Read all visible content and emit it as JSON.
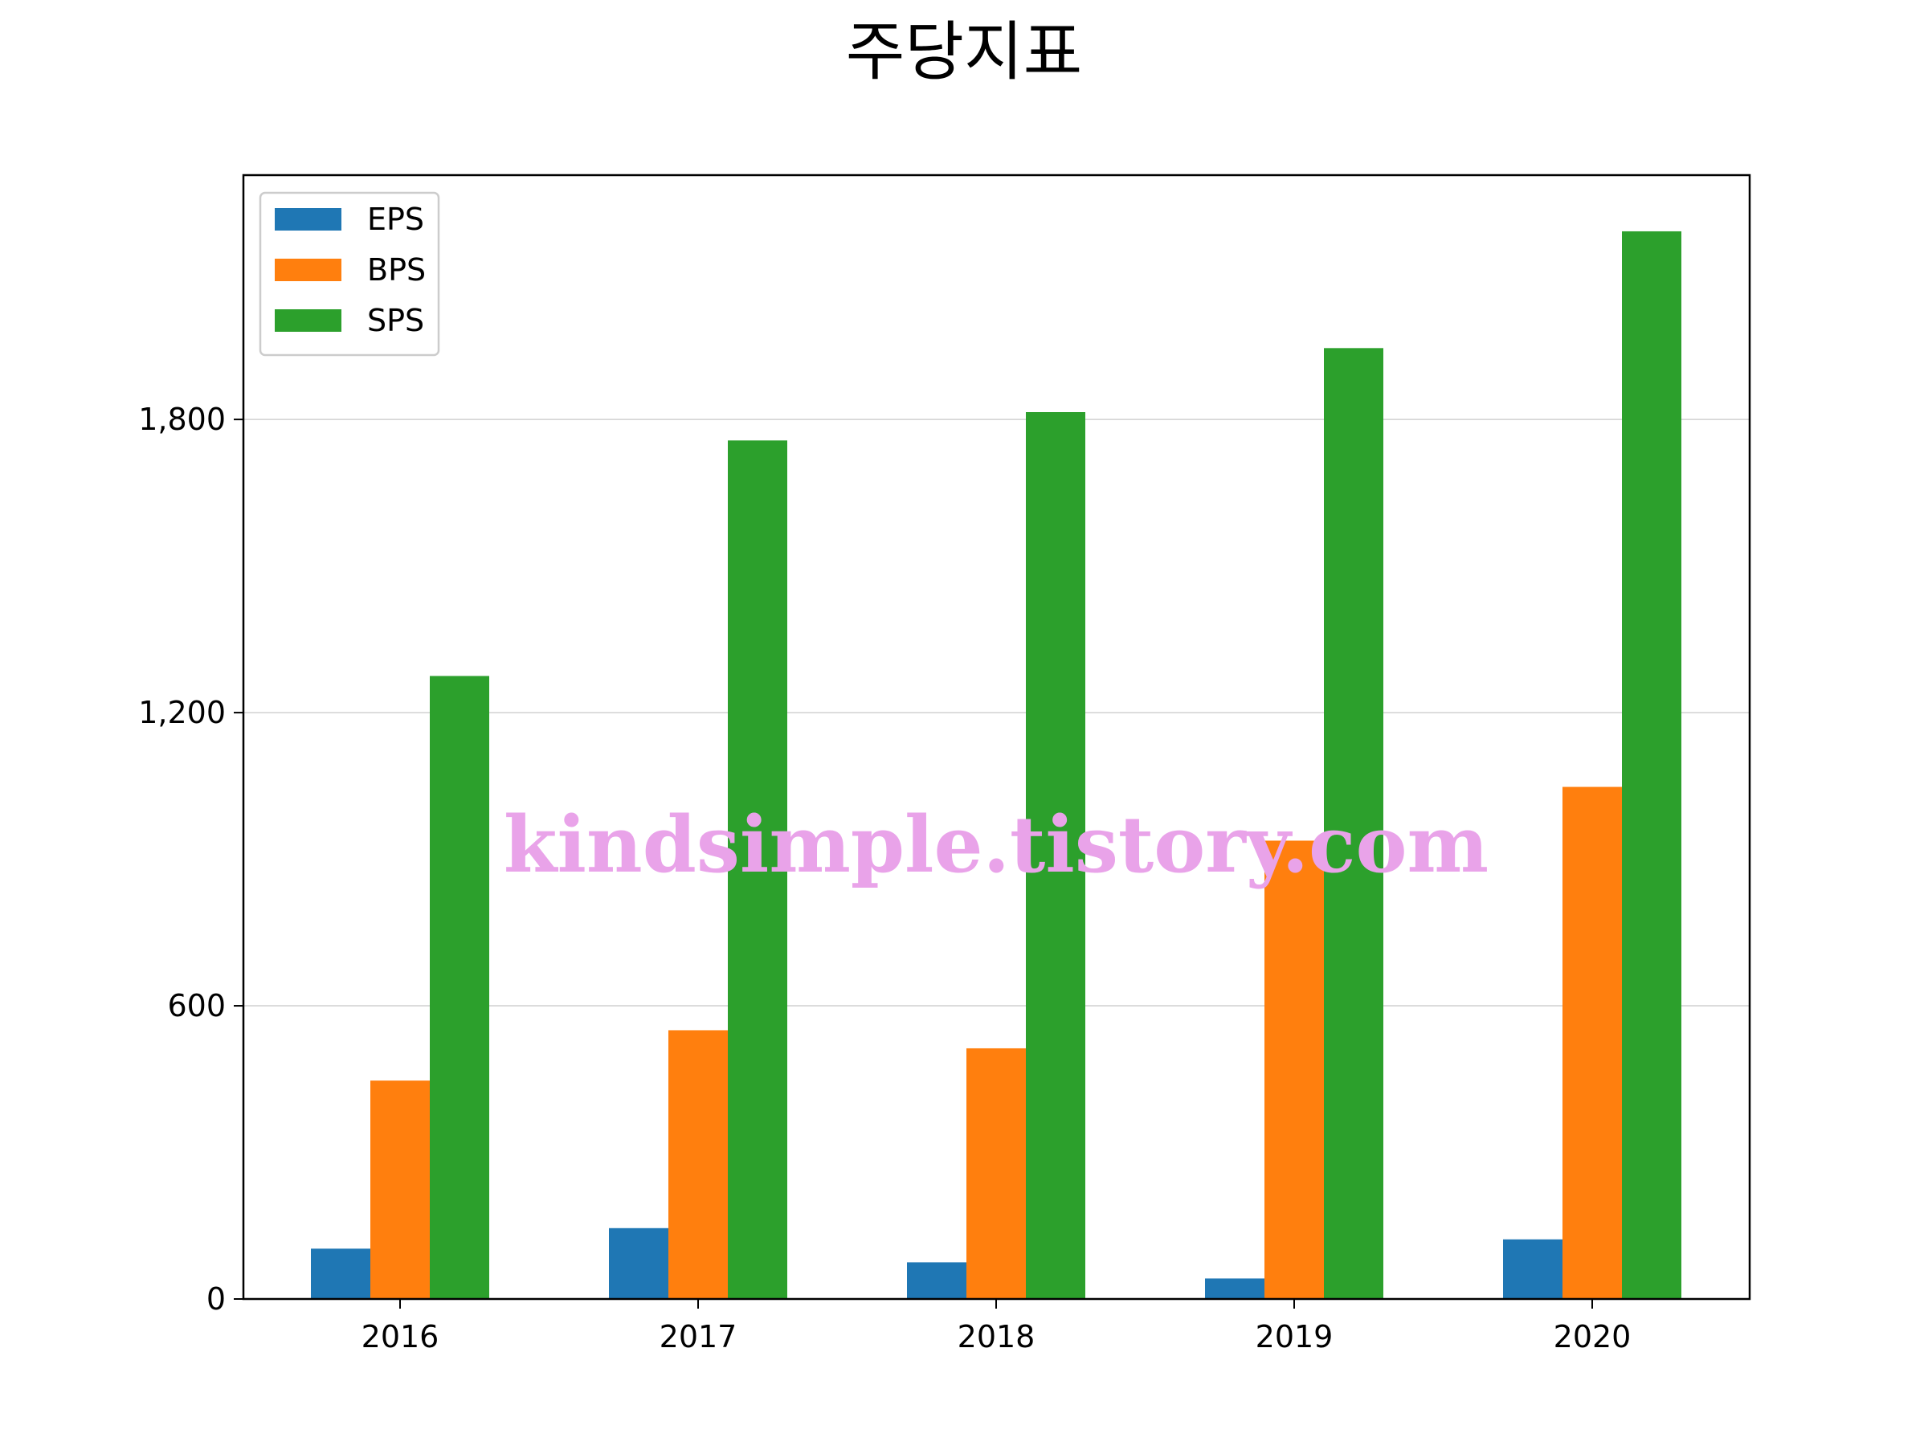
{
  "chart_data": {
    "type": "bar",
    "title": "주당지표",
    "xlabel": "",
    "ylabel": "",
    "categories": [
      "2016",
      "2017",
      "2018",
      "2019",
      "2020"
    ],
    "series": [
      {
        "name": "EPS",
        "color": "#1f77b4",
        "values": [
          103,
          145,
          75,
          42,
          122
        ]
      },
      {
        "name": "BPS",
        "color": "#ff7f0e",
        "values": [
          447,
          550,
          513,
          938,
          1048
        ]
      },
      {
        "name": "SPS",
        "color": "#2ca02c",
        "values": [
          1275,
          1757,
          1815,
          1946,
          2185
        ]
      }
    ],
    "ylim": [
      0,
      2300
    ],
    "yticks": [
      0,
      600,
      1200,
      1800
    ],
    "ytick_labels": [
      "0",
      "600",
      "1,200",
      "1,800"
    ],
    "grid": "horizontal",
    "legend": "top-left",
    "watermark": "kindsimple.tistory.com"
  }
}
